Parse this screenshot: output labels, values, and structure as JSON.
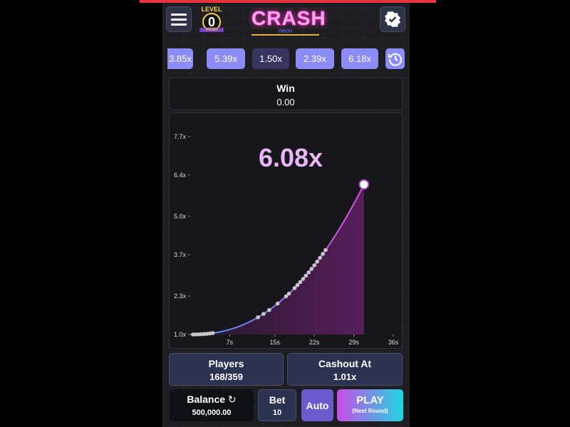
{
  "header": {
    "menu_icon": "hamburger-icon",
    "level_label": "LEVEL",
    "level_value": "0",
    "level_badge": "HASH",
    "logo_title": "CRASH",
    "logo_subtitle": "neon",
    "verified_icon": "badge-check-icon"
  },
  "history": {
    "items": [
      "3.85x",
      "5.39x",
      "1.50x",
      "2.39x",
      "6.18x"
    ],
    "history_icon": "clock-history-icon"
  },
  "win": {
    "label": "Win",
    "value": "0.00"
  },
  "chart_data": {
    "type": "line",
    "current_multiplier_label": "6.08x",
    "current": {
      "t": 30.8,
      "multiplier": 6.08
    },
    "y_ticks": [
      "1.0x",
      "2.3x",
      "3.7x",
      "5.0x",
      "6.4x",
      "7.7x"
    ],
    "y_tick_values": [
      1.0,
      2.3,
      3.7,
      5.0,
      6.4,
      7.7
    ],
    "x_ticks": [
      "7s",
      "15s",
      "22s",
      "29s",
      "36s"
    ],
    "x_tick_values": [
      7,
      15,
      22,
      29,
      36
    ],
    "xlim": [
      0,
      36
    ],
    "ylim": [
      1.0,
      7.7
    ],
    "cashout_points_t": [
      0.5,
      1,
      1.5,
      2,
      2.5,
      3,
      3.5,
      4,
      12,
      13,
      14,
      15.5,
      17,
      17.5,
      18.5,
      19,
      19.5,
      20,
      20.5,
      21,
      21.5,
      22,
      22.5,
      23,
      23.5,
      24
    ],
    "colors": {
      "start": "#3b9cff",
      "end": "#e04ce0",
      "fill": "#5a1f5e"
    }
  },
  "stats": {
    "players_label": "Players",
    "players_value": "168/359",
    "cashout_label": "Cashout At",
    "cashout_value": "1.01x"
  },
  "controls": {
    "balance_label": "Balance",
    "balance_value": "500,000.00",
    "refresh_icon": "refresh-icon",
    "bet_label": "Bet",
    "bet_value": "10",
    "auto_label": "Auto",
    "play_label": "PLAY",
    "play_sub": "(Next Round)"
  }
}
